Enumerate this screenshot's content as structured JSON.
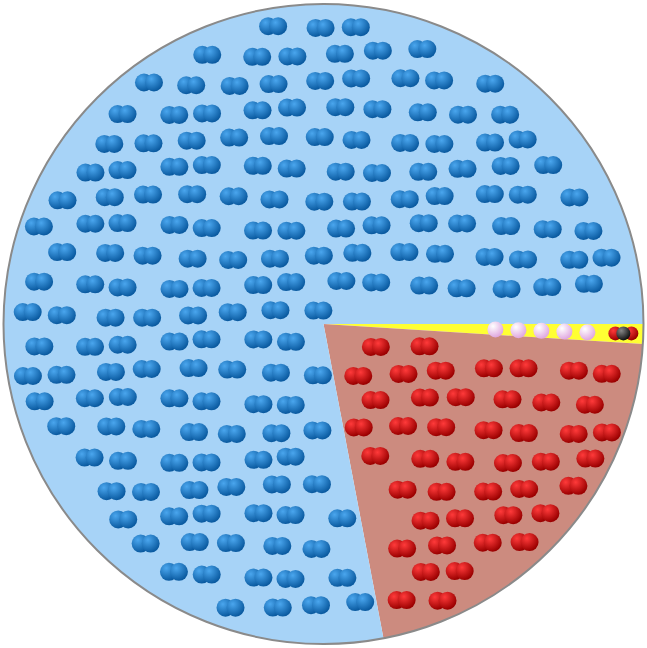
{
  "chart_data": {
    "type": "pie",
    "values": [
      1,
      21,
      78
    ],
    "colors": [
      "#ffff33",
      "#cc8b7f",
      "#a7d3f7"
    ]
  }
}
